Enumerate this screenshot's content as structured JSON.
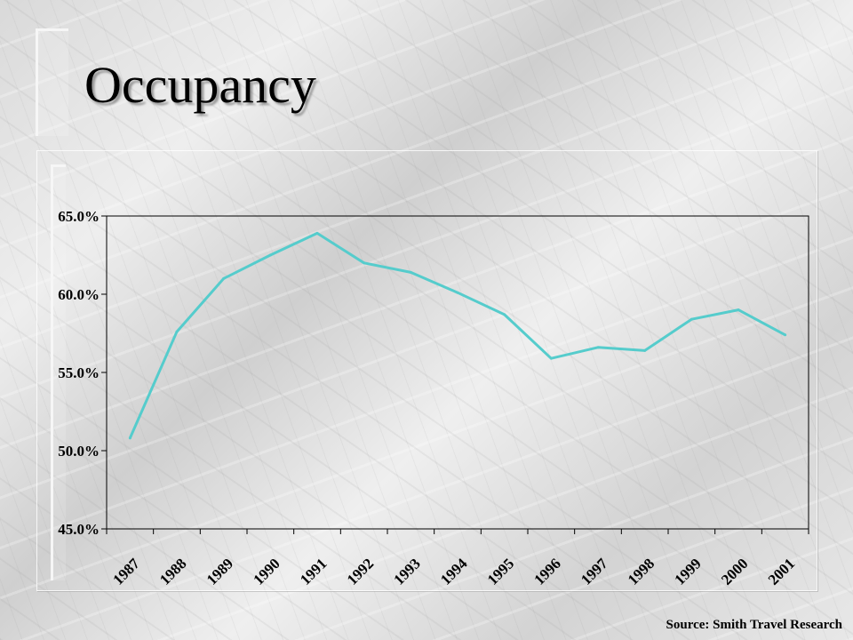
{
  "slide": {
    "title": "Occupancy",
    "source": "Source: Smith Travel Research"
  },
  "colors": {
    "line": "#55cccc",
    "axis": "#000000"
  },
  "chart_data": {
    "type": "line",
    "title": "",
    "xlabel": "",
    "ylabel": "",
    "categories": [
      "1987",
      "1988",
      "1989",
      "1990",
      "1991",
      "1992",
      "1993",
      "1994",
      "1995",
      "1996",
      "1997",
      "1998",
      "1999",
      "2000",
      "2001"
    ],
    "y_tick_labels": [
      "45.0%",
      "50.0%",
      "55.0%",
      "60.0%",
      "65.0%"
    ],
    "y_ticks": [
      45,
      50,
      55,
      60,
      65
    ],
    "ylim": [
      45,
      65
    ],
    "grid": false,
    "legend": "none",
    "series": [
      {
        "values": [
          50.8,
          57.6,
          61.0,
          62.5,
          63.9,
          62.0,
          61.4,
          60.1,
          58.7,
          55.9,
          56.6,
          56.4,
          58.4,
          59.0,
          57.4
        ]
      }
    ]
  }
}
